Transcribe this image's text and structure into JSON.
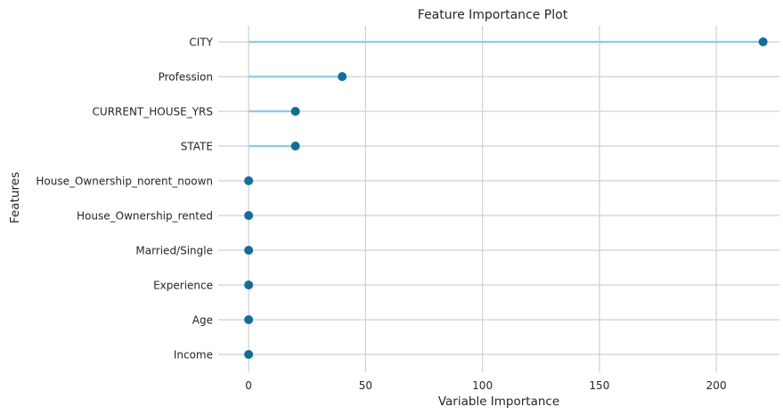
{
  "chart_data": {
    "type": "lollipop",
    "title": "Feature Importance Plot",
    "xlabel": "Variable Importance",
    "ylabel": "Features",
    "xlim": [
      -13,
      227
    ],
    "xticks": [
      0,
      50,
      100,
      150,
      200
    ],
    "xtick_labels": [
      "0",
      "50",
      "100",
      "150",
      "200"
    ],
    "grid": true,
    "categories": [
      "CITY",
      "Profession",
      "CURRENT_HOUSE_YRS",
      "STATE",
      "House_Ownership_norent_noown",
      "House_Ownership_rented",
      "Married/Single",
      "Experience",
      "Age",
      "Income"
    ],
    "values": [
      220,
      40,
      20,
      20,
      0,
      0,
      0,
      0,
      0,
      0
    ],
    "colors": {
      "stem": "#87ceeb",
      "marker": "#0e6e9e",
      "grid": "#d0d0d0",
      "background": "#ffffff"
    }
  }
}
